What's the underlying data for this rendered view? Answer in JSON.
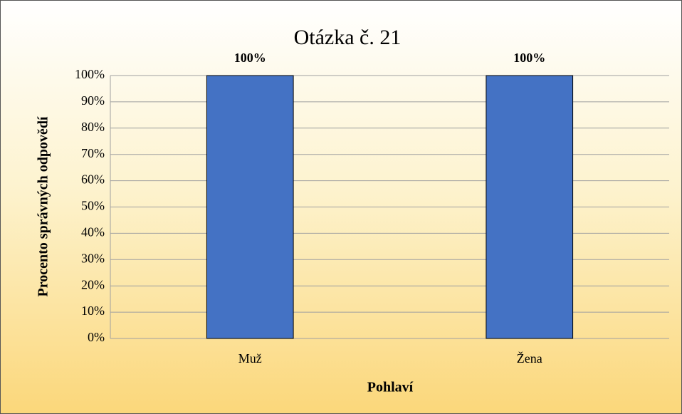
{
  "chart_data": {
    "type": "bar",
    "title": "Otázka č. 21",
    "categories": [
      "Muž",
      "Žena"
    ],
    "values": [
      100,
      100
    ],
    "value_labels": [
      "100%",
      "100%"
    ],
    "color": "#4472c4",
    "xlabel": "Pohlaví",
    "ylabel": "Procento správných odpovědí",
    "ylim": [
      0,
      100
    ],
    "yticks": [
      {
        "value": 0,
        "label": "0%"
      },
      {
        "value": 10,
        "label": "10%"
      },
      {
        "value": 20,
        "label": "20%"
      },
      {
        "value": 30,
        "label": "30%"
      },
      {
        "value": 40,
        "label": "40%"
      },
      {
        "value": 50,
        "label": "50%"
      },
      {
        "value": 60,
        "label": "60%"
      },
      {
        "value": 70,
        "label": "70%"
      },
      {
        "value": 80,
        "label": "80%"
      },
      {
        "value": 90,
        "label": "90%"
      },
      {
        "value": 100,
        "label": "100%"
      }
    ],
    "grid": true
  }
}
